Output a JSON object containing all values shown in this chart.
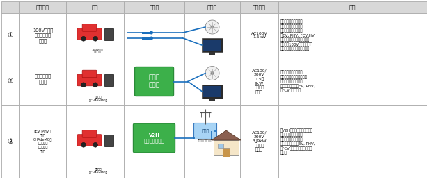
{
  "col_headers": [
    "給電方法",
    "電源",
    "給電器",
    "その他",
    "最大出力",
    "備考"
  ],
  "row_labels": [
    "①",
    "②",
    "③"
  ],
  "method_texts": [
    "100V電源用\nコンセントか\nら給電",
    "給電端子から\nら給電",
    "（EV・PHVの\n場合は\nCHAdeMO急\n速充電端子\nを給電用に\n共有）"
  ],
  "source_labels": [
    "100V電源用\nコンセント",
    "給電端子\n（CHAdeMO）",
    "給電端子\n（CHAdeMO）"
  ],
  "charger_texts": [
    "",
    "可搬型\n給電器",
    "V2H\n（充放電設備）"
  ],
  "output_texts": [
    "AC100V\n1.5kW",
    "AC100/\n200V\n1.5～\n9kW\n（機器に\nよる）",
    "AC100/\n200V\n3～9kW\n（機器に\nよる）"
  ],
  "notes": [
    "・車本体のみで給電可\n・設置・配線工事不要\n・出力が比較的小さい\n・EV, PHV, FCV,HV\n　（メーカーオプション等に\n　より、100V電源用コンセ\n　ントを持つ車）が対応可能",
    "・可搬型給電器が必要\n・可搬型でどこでも給電可\n・設置・配線工事不要\n・給電端子を持つEV, PHV,\n　FCVが対応可能",
    "・V2H（充放電設備）が必要\n・建物への直接給電可\n・設置・配線工事必要\n・給電端子を持つEV, PHV,\n　FCVが一定の条件下で対応\n　可能"
  ],
  "header_bg": "#d8d8d8",
  "border_color": "#aaaaaa",
  "arrow_color": "#1a6fbd",
  "text_color": "#111111",
  "green_box": "#3cb04a",
  "green_box_edge": "#2a8a38",
  "car_color": "#e03030",
  "font_size_header": 5.8,
  "font_size_cell": 4.8,
  "font_size_note": 4.0,
  "font_size_label": 7.0
}
